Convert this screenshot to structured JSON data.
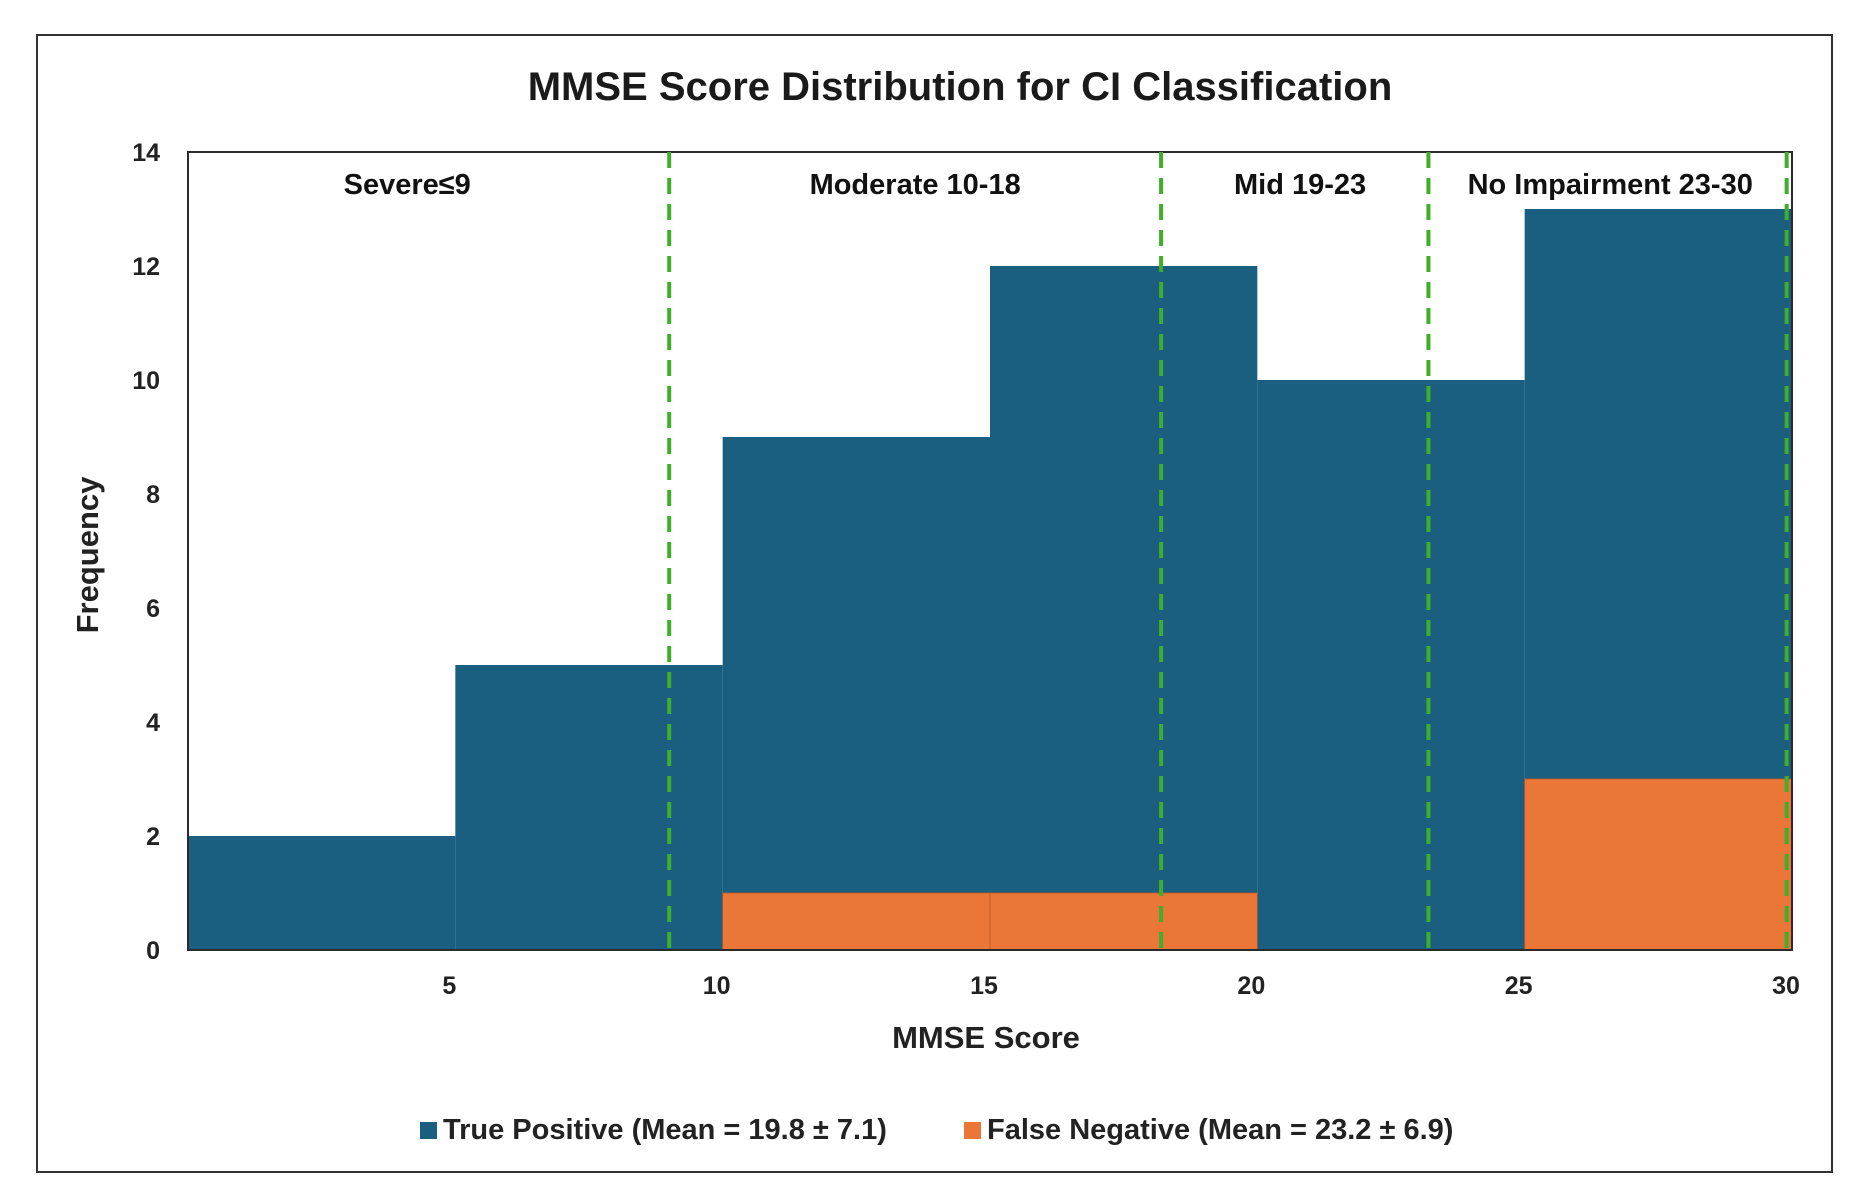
{
  "chart_data": {
    "type": "bar",
    "title": "MMSE Score Distribution for CI Classification",
    "xlabel": "MMSE Score",
    "ylabel": "Frequency",
    "xlim": [
      0,
      30
    ],
    "ylim": [
      0,
      14
    ],
    "xticks": [
      5,
      10,
      15,
      20,
      25,
      30
    ],
    "yticks": [
      0,
      2,
      4,
      6,
      8,
      10,
      12,
      14
    ],
    "bin_edges": [
      0,
      5,
      10,
      15,
      20,
      25,
      30
    ],
    "series": [
      {
        "name": "True Positive (Mean = 19.8 ± 7.1)",
        "color": "#1a5f80",
        "values": [
          2,
          5,
          9,
          12,
          10,
          13
        ]
      },
      {
        "name": "False Negative (Mean = 23.2 ± 6.9)",
        "color": "#ea7638",
        "values": [
          0,
          0,
          1,
          1,
          0,
          3
        ]
      }
    ],
    "thresholds": [
      9.0,
      18.2,
      23.2,
      29.9
    ],
    "threshold_color": "#3fae2a",
    "regions": [
      {
        "label": "Severe≤9",
        "center": 4.1
      },
      {
        "label": "Moderate 10-18",
        "center": 13.6
      },
      {
        "label": "Mid 19-23",
        "center": 20.8
      },
      {
        "label": "No Impairment 23-30",
        "center": 26.6
      }
    ],
    "grid": false,
    "legend_position": "bottom"
  }
}
